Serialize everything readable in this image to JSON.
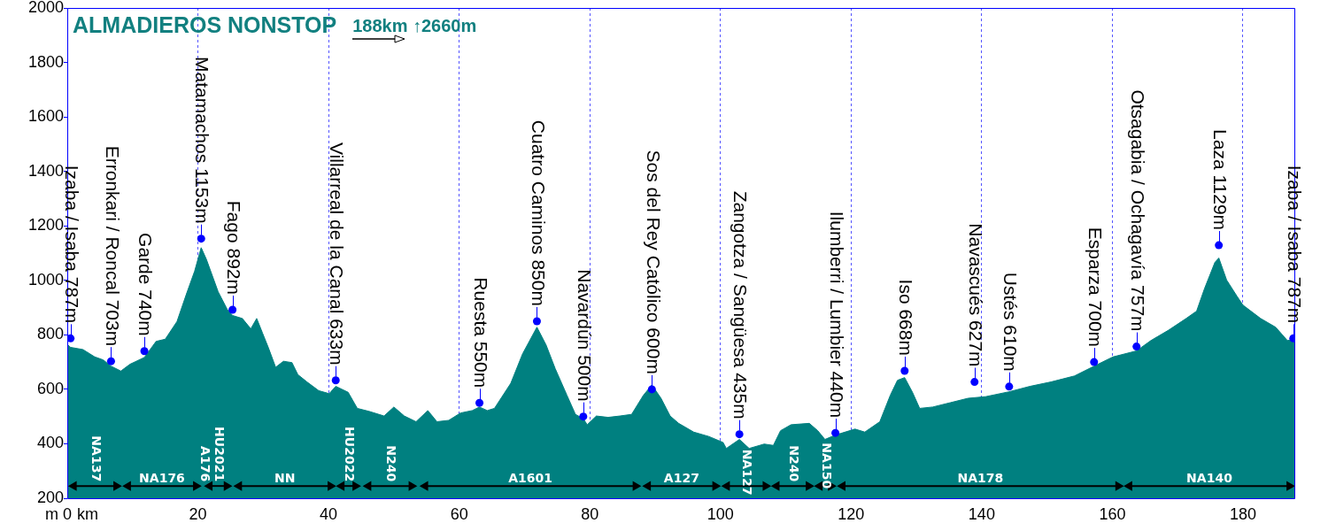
{
  "chart_data": {
    "type": "area",
    "title": "ALMADIEROS NONSTOP",
    "subtitle": "188km ↑2660m",
    "xlabel": "km",
    "ylabel": "m",
    "xlim": [
      0,
      188
    ],
    "xticks": [
      0,
      20,
      40,
      60,
      80,
      100,
      120,
      140,
      160,
      180
    ],
    "ylim": [
      200,
      2000
    ],
    "yticks": [
      200,
      400,
      600,
      800,
      1000,
      1200,
      1400,
      1600,
      1800,
      2000
    ],
    "grid": "x",
    "series": [
      {
        "color": "#008080",
        "x": [
          0,
          0.5,
          2.4,
          4.2,
          5.5,
          6.7,
          8.2,
          9.6,
          11.8,
          13.6,
          15.0,
          16.8,
          18.2,
          19.5,
          20.5,
          21.3,
          23.1,
          24.5,
          25.3,
          26.8,
          28.1,
          29.0,
          29.9,
          30.8,
          31.9,
          33.1,
          34.4,
          35.3,
          36.7,
          38.5,
          40.1,
          41.1,
          43.0,
          44.4,
          46.2,
          48.5,
          50.0,
          51.6,
          53.4,
          55.2,
          56.6,
          58.4,
          60.2,
          62.0,
          63.1,
          64.3,
          65.4,
          67.9,
          69.7,
          71.9,
          73.3,
          74.7,
          76.5,
          77.8,
          79.0,
          79.6,
          81.0,
          82.8,
          84.6,
          86.4,
          88.2,
          89.5,
          90.9,
          92.3,
          93.6,
          95.9,
          98.2,
          100.4,
          100.9,
          102.9,
          104.4,
          106.7,
          108.1,
          109.2,
          110.8,
          113.6,
          114.9,
          116.0,
          117.6,
          120.6,
          122.1,
          124.4,
          126.0,
          127.1,
          128.2,
          129.4,
          130.5,
          132.5,
          135.2,
          137.9,
          140.6,
          144.2,
          147.4,
          150.6,
          154.2,
          157.2,
          160.1,
          163.7,
          165.9,
          168.6,
          171.3,
          172.9,
          174.1,
          175.7,
          176.3,
          177.5,
          179.1,
          180.0,
          182.7,
          185.0,
          186.8,
          187.7,
          188
        ],
        "values": [
          765,
          754,
          746,
          719,
          708,
          685,
          667,
          692,
          717,
          776,
          784,
          849,
          947,
          1034,
          1120,
          1077,
          958,
          893,
          871,
          860,
          822,
          860,
          806,
          752,
          681,
          703,
          698,
          654,
          627,
          595,
          584,
          611,
          589,
          530,
          519,
          502,
          535,
          502,
          481,
          522,
          481,
          486,
          513,
          522,
          535,
          522,
          530,
          622,
          730,
          828,
          763,
          676,
          578,
          508,
          492,
          470,
          502,
          497,
          502,
          508,
          578,
          616,
          567,
          502,
          475,
          443,
          427,
          405,
          383,
          416,
          383,
          399,
          394,
          448,
          470,
          475,
          448,
          416,
          432,
          454,
          443,
          481,
          578,
          633,
          643,
          589,
          530,
          535,
          551,
          567,
          573,
          591,
          611,
          627,
          649,
          685,
          719,
          741,
          779,
          817,
          860,
          887,
          969,
          1066,
          1082,
          1001,
          941,
          909,
          860,
          828,
          779,
          784,
          784
        ]
      },
      {
        "type": "scatter",
        "color": "#0000ff",
        "marker": "circle",
        "x": [
          0.5,
          6.7,
          11.8,
          20.5,
          25.3,
          41.1,
          63.1,
          71.9,
          79.0,
          89.5,
          102.9,
          117.6,
          128.2,
          138.9,
          144.2,
          157.2,
          163.7,
          176.3,
          187.7
        ],
        "values": [
          787,
          703,
          740,
          1153,
          892,
          633,
          550,
          850,
          500,
          600,
          435,
          440,
          668,
          627,
          610,
          700,
          757,
          1129,
          787
        ],
        "value_labels": [
          "Izaba / Isaba 787m",
          "Erronkari / Roncal 703m",
          "Garde 740m",
          "Matamachos 1153m",
          "Fago 892m",
          "Villarreal de la Canal 633m",
          "Ruesta 550m",
          "Cuatro Caminos 850m",
          "Navardún 500m",
          "Sos del Rey Católico 600m",
          "Zangotza / Sangüesa 435m",
          "Ilumberri / Lumbier 440m",
          "Iso 668m",
          "Navascués 627m",
          "Ustés 610m",
          "Esparza 700m",
          "Otsagabia / Ochagavía 757m",
          "Laza 1129m",
          "Izaba / Isaba 787m"
        ]
      },
      {
        "type": "line",
        "name": "NA137",
        "color": "#000000",
        "marker": "triangle",
        "x": [
          1.0,
          7.5
        ],
        "values": [
          245,
          245
        ]
      },
      {
        "type": "line",
        "name": "NA176",
        "color": "#000000",
        "marker": "triangle",
        "x": [
          9.3,
          19.7
        ],
        "values": [
          245,
          245
        ]
      },
      {
        "type": "line",
        "name": "HU2021",
        "color": "#000000",
        "marker": "triangle",
        "x": [
          21.8,
          24.4
        ],
        "values": [
          245,
          245
        ]
      },
      {
        "type": "line",
        "name": "NN",
        "color": "#000000",
        "marker": "triangle",
        "x": [
          26.3,
          40.3
        ],
        "values": [
          245,
          245
        ]
      },
      {
        "type": "line",
        "name": "HU2022",
        "color": "#000000",
        "marker": "triangle",
        "x": [
          42.0,
          44.1
        ],
        "values": [
          245,
          245
        ]
      },
      {
        "type": "line",
        "name": "N240",
        "color": "#000000",
        "marker": "triangle",
        "x": [
          46.1,
          52.7
        ],
        "values": [
          245,
          245
        ]
      },
      {
        "type": "line",
        "name": "A1601",
        "color": "#000000",
        "marker": "triangle",
        "x": [
          54.8,
          87.0
        ],
        "values": [
          245,
          245
        ]
      },
      {
        "type": "line",
        "name": "A127",
        "color": "#000000",
        "marker": "triangle",
        "x": [
          88.9,
          99.2
        ],
        "values": [
          245,
          245
        ]
      },
      {
        "type": "line",
        "name": "NA127",
        "color": "#000000",
        "marker": "triangle",
        "x": [
          101.0,
          106.9
        ],
        "values": [
          245,
          245
        ]
      },
      {
        "type": "line",
        "name": "N240",
        "color": "#000000",
        "marker": "triangle",
        "x": [
          108.6,
          113.5
        ],
        "values": [
          245,
          245
        ]
      },
      {
        "type": "line",
        "name": "NA150",
        "color": "#000000",
        "marker": "triangle",
        "x": [
          115.2,
          116.9
        ],
        "values": [
          245,
          245
        ]
      },
      {
        "type": "line",
        "name": "NA178",
        "color": "#000000",
        "marker": "triangle",
        "x": [
          118.7,
          160.9
        ],
        "values": [
          245,
          245
        ]
      },
      {
        "type": "line",
        "name": "NA140",
        "color": "#000000",
        "marker": "triangle",
        "x": [
          162.6,
          187.1
        ],
        "values": [
          245,
          245
        ]
      }
    ],
    "annotations": [
      {
        "text": "A176",
        "x": 20.9,
        "y": 245
      }
    ]
  }
}
